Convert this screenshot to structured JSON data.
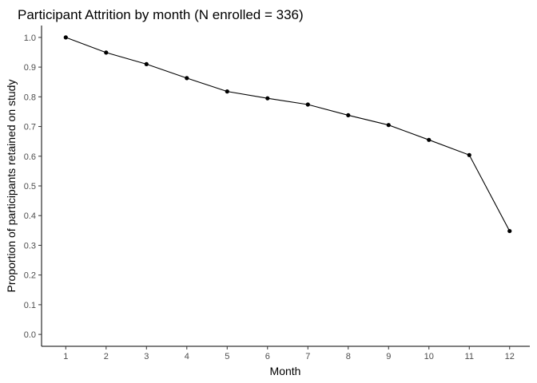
{
  "chart_data": {
    "type": "line",
    "title": "Participant Attrition by month (N enrolled = 336)",
    "xlabel": "Month",
    "ylabel": "Proportion of participants retained on study",
    "x": [
      1,
      2,
      3,
      4,
      5,
      6,
      7,
      8,
      9,
      10,
      11,
      12
    ],
    "series": [
      {
        "values": [
          1.0,
          0.949,
          0.91,
          0.863,
          0.818,
          0.795,
          0.774,
          0.738,
          0.705,
          0.655,
          0.604,
          0.348
        ]
      }
    ],
    "x_ticks": [
      "1",
      "2",
      "3",
      "4",
      "5",
      "6",
      "7",
      "8",
      "9",
      "10",
      "11",
      "12"
    ],
    "y_ticks": [
      "0.0",
      "0.1",
      "0.2",
      "0.3",
      "0.4",
      "0.5",
      "0.6",
      "0.7",
      "0.8",
      "0.9",
      "1.0"
    ],
    "xlim": [
      0.4,
      12.5
    ],
    "ylim": [
      -0.04,
      1.04
    ],
    "grid": false,
    "legend": "none",
    "colors": {
      "line": "#000000",
      "points": "#000000",
      "axis": "#000000",
      "tick_text": "#4d4d4d"
    }
  }
}
